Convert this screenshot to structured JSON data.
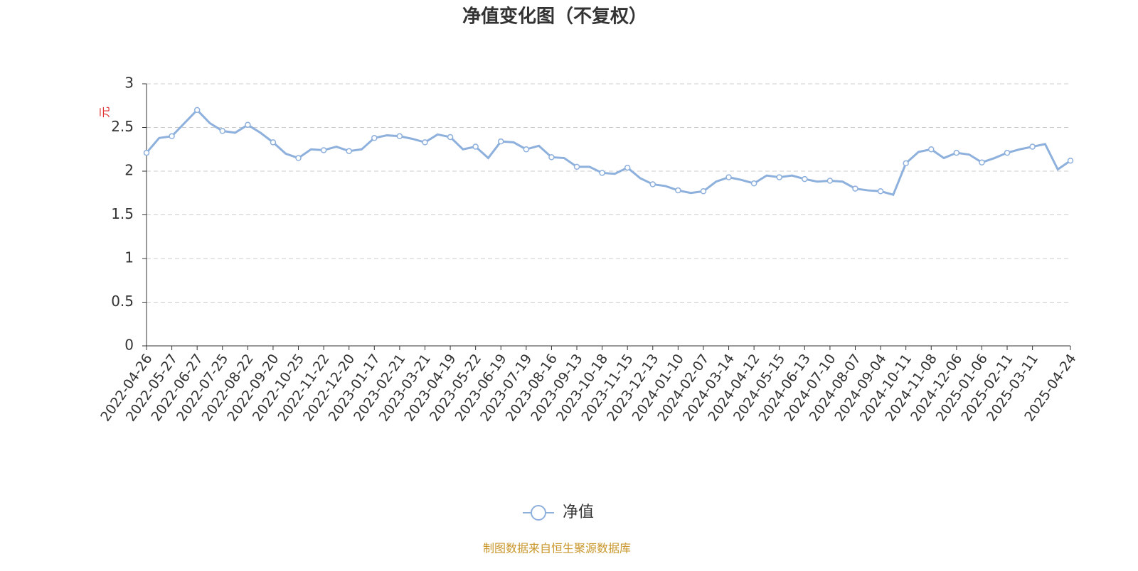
{
  "chart_data": {
    "type": "line",
    "title": "净值变化图（不复权）",
    "y_label": "元",
    "source": "制图数据来自恒生聚源数据库",
    "categories": [
      "2022-04-26",
      null,
      "2022-05-27",
      null,
      "2022-06-27",
      null,
      "2022-07-25",
      null,
      "2022-08-22",
      null,
      "2022-09-20",
      null,
      "2022-10-25",
      null,
      "2022-11-22",
      null,
      "2022-12-20",
      null,
      "2023-01-17",
      null,
      "2023-02-21",
      null,
      "2023-03-21",
      null,
      "2023-04-19",
      null,
      "2023-05-22",
      null,
      "2023-06-19",
      null,
      "2023-07-19",
      null,
      "2023-08-16",
      null,
      "2023-09-13",
      null,
      "2023-10-18",
      null,
      "2023-11-15",
      null,
      "2023-12-13",
      null,
      "2024-01-10",
      null,
      "2024-02-07",
      null,
      "2024-03-14",
      null,
      "2024-04-12",
      null,
      "2024-05-15",
      null,
      "2024-06-13",
      null,
      "2024-07-10",
      null,
      "2024-08-07",
      null,
      "2024-09-04",
      null,
      "2024-10-11",
      null,
      "2024-11-08",
      null,
      "2024-12-06",
      null,
      "2025-01-06",
      null,
      "2025-02-11",
      null,
      "2025-03-11",
      null,
      null,
      "2025-04-24"
    ],
    "series": [
      {
        "name": "净值",
        "color": "#8eb0dc",
        "values": [
          2.21,
          2.38,
          2.4,
          2.55,
          2.7,
          2.55,
          2.46,
          2.44,
          2.53,
          2.44,
          2.33,
          2.2,
          2.15,
          2.25,
          2.24,
          2.28,
          2.23,
          2.25,
          2.38,
          2.41,
          2.4,
          2.37,
          2.33,
          2.42,
          2.39,
          2.25,
          2.28,
          2.15,
          2.34,
          2.33,
          2.25,
          2.29,
          2.16,
          2.15,
          2.05,
          2.05,
          1.98,
          1.97,
          2.04,
          1.92,
          1.85,
          1.83,
          1.78,
          1.75,
          1.77,
          1.88,
          1.93,
          1.9,
          1.86,
          1.95,
          1.93,
          1.95,
          1.91,
          1.88,
          1.89,
          1.88,
          1.8,
          1.78,
          1.77,
          1.73,
          2.09,
          2.22,
          2.25,
          2.15,
          2.21,
          2.19,
          2.1,
          2.15,
          2.21,
          2.25,
          2.28,
          2.31,
          2.02,
          2.12
        ]
      }
    ],
    "ylim": [
      0,
      3
    ],
    "yticks": [
      0,
      0.5,
      1,
      1.5,
      2,
      2.5,
      3
    ],
    "grid": true
  }
}
